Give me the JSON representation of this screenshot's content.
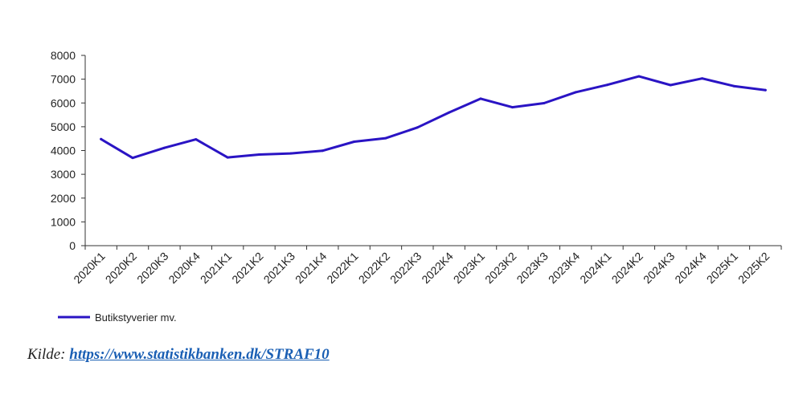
{
  "chart_data": {
    "type": "line",
    "title": "",
    "xlabel": "",
    "ylabel": "",
    "categories": [
      "2020K1",
      "2020K2",
      "2020K3",
      "2020K4",
      "2021K1",
      "2021K2",
      "2021K3",
      "2021K4",
      "2022K1",
      "2022K2",
      "2022K3",
      "2022K4",
      "2023K1",
      "2023K2",
      "2023K3",
      "2023K4",
      "2024K1",
      "2024K2",
      "2024K3",
      "2024K4",
      "2025K1",
      "2025K2"
    ],
    "series": [
      {
        "name": "Butikstyverier mv.",
        "color": "#2a14c4",
        "values": [
          4480,
          3690,
          4110,
          4470,
          3710,
          3830,
          3880,
          3990,
          4370,
          4520,
          4970,
          5600,
          6180,
          5820,
          5990,
          6450,
          6760,
          7120,
          6750,
          7030,
          6710,
          6540
        ]
      }
    ],
    "ylim": [
      0,
      8000
    ],
    "yticks": [
      0,
      1000,
      2000,
      3000,
      4000,
      5000,
      6000,
      7000,
      8000
    ],
    "grid": false,
    "legend_position": "bottom-left"
  },
  "source": {
    "label": "Kilde:",
    "link_text": "https://www.statistikbanken.dk/STRAF10"
  }
}
